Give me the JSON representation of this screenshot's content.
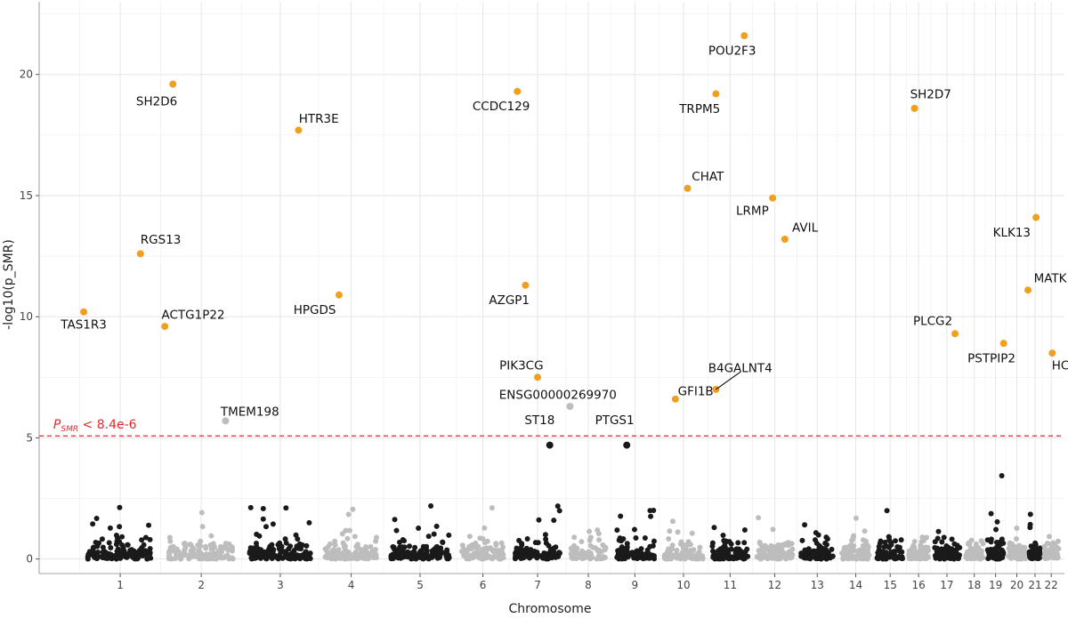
{
  "chart_data": {
    "type": "scatter",
    "title": "",
    "xlabel": "Chromosome",
    "ylabel": "-log10(p_SMR)",
    "ylim": [
      -0.6,
      23.0
    ],
    "yticks": [
      0,
      5,
      10,
      15,
      20
    ],
    "grid": true,
    "chromosomes": [
      {
        "label": "1",
        "start": 0.0,
        "end": 2.0
      },
      {
        "label": "2",
        "start": 2.0,
        "end": 4.0
      },
      {
        "label": "3",
        "start": 4.0,
        "end": 5.9
      },
      {
        "label": "4",
        "start": 5.9,
        "end": 7.5
      },
      {
        "label": "5",
        "start": 7.5,
        "end": 9.3
      },
      {
        "label": "6",
        "start": 9.3,
        "end": 10.6
      },
      {
        "label": "7",
        "start": 10.6,
        "end": 12.0
      },
      {
        "label": "8",
        "start": 12.0,
        "end": 13.1
      },
      {
        "label": "9",
        "start": 13.1,
        "end": 14.3
      },
      {
        "label": "10",
        "start": 14.3,
        "end": 15.5
      },
      {
        "label": "11",
        "start": 15.5,
        "end": 16.6
      },
      {
        "label": "12",
        "start": 16.6,
        "end": 17.7
      },
      {
        "label": "13",
        "start": 17.7,
        "end": 18.7
      },
      {
        "label": "14",
        "start": 18.7,
        "end": 19.6
      },
      {
        "label": "15",
        "start": 19.6,
        "end": 20.4
      },
      {
        "label": "16",
        "start": 20.4,
        "end": 21.0
      },
      {
        "label": "17",
        "start": 21.0,
        "end": 21.8
      },
      {
        "label": "18",
        "start": 21.8,
        "end": 22.35
      },
      {
        "label": "19",
        "start": 22.35,
        "end": 22.85
      },
      {
        "label": "20",
        "start": 22.85,
        "end": 23.4
      },
      {
        "label": "21",
        "start": 23.4,
        "end": 23.75
      },
      {
        "label": "22",
        "start": 23.75,
        "end": 24.2
      }
    ],
    "xrange": [
      -1.0,
      24.3
    ],
    "threshold": {
      "value": 5.08,
      "label_main": "P",
      "label_sub": "SMR",
      "label_rest": " < 8.4e-6"
    },
    "colors": {
      "odd": "#1a1a1a",
      "even": "#bdbdbd",
      "significant": "#f0a01e",
      "threshold": "#e0282c"
    },
    "background_seed": 7,
    "significant": [
      {
        "gene": "TAS1R3",
        "x": 0.1,
        "y": 10.2,
        "lx": 0.1,
        "ly": 9.7
      },
      {
        "gene": "RGS13",
        "x": 1.5,
        "y": 12.6,
        "lx": 2.0,
        "ly": 13.2
      },
      {
        "gene": "ACTG1P22",
        "x": 2.1,
        "y": 9.6,
        "lx": 2.8,
        "ly": 10.1
      },
      {
        "gene": "SH2D6",
        "x": 2.3,
        "y": 19.6,
        "lx": 1.9,
        "ly": 18.9
      },
      {
        "gene": "TMEM198",
        "x": 3.6,
        "y": 5.7,
        "lx": 4.2,
        "ly": 6.1
      },
      {
        "gene": "HTR3E",
        "x": 5.4,
        "y": 17.7,
        "lx": 5.9,
        "ly": 18.2
      },
      {
        "gene": "HPGDS",
        "x": 6.4,
        "y": 10.9,
        "lx": 5.8,
        "ly": 10.3
      },
      {
        "gene": "CCDC129",
        "x": 10.8,
        "y": 19.3,
        "lx": 10.4,
        "ly": 18.7
      },
      {
        "gene": "AZGP1",
        "x": 11.0,
        "y": 11.3,
        "lx": 10.6,
        "ly": 10.7
      },
      {
        "gene": "PIK3CG",
        "x": 11.3,
        "y": 7.5,
        "lx": 10.9,
        "ly": 8.0
      },
      {
        "gene": "ENSG00000269970",
        "x": 12.1,
        "y": 6.3,
        "lx": 11.8,
        "ly": 6.8
      },
      {
        "gene": "ST18",
        "x": 11.6,
        "y": 4.7,
        "lx": 11.35,
        "ly": 5.75
      },
      {
        "gene": "PTGS1",
        "x": 13.5,
        "y": 4.7,
        "lx": 13.2,
        "ly": 5.75
      },
      {
        "gene": "GFI1B",
        "x": 14.7,
        "y": 6.6,
        "lx": 15.2,
        "ly": 6.95
      },
      {
        "gene": "B4GALNT4",
        "x": 15.7,
        "y": 7.0,
        "lx": 16.3,
        "ly": 7.9
      },
      {
        "gene": "CHAT",
        "x": 15.0,
        "y": 15.3,
        "lx": 15.5,
        "ly": 15.8
      },
      {
        "gene": "TRPM5",
        "x": 15.7,
        "y": 19.2,
        "lx": 15.3,
        "ly": 18.6
      },
      {
        "gene": "POU2F3",
        "x": 16.4,
        "y": 21.6,
        "lx": 16.1,
        "ly": 21.0
      },
      {
        "gene": "LRMP",
        "x": 17.1,
        "y": 14.9,
        "lx": 16.6,
        "ly": 14.4
      },
      {
        "gene": "AVIL",
        "x": 17.4,
        "y": 13.2,
        "lx": 17.9,
        "ly": 13.7
      },
      {
        "gene": "SH2D7",
        "x": 20.6,
        "y": 18.6,
        "lx": 21.0,
        "ly": 19.2
      },
      {
        "gene": "PLCG2",
        "x": 21.6,
        "y": 9.3,
        "lx": 21.05,
        "ly": 9.85
      },
      {
        "gene": "KLK13",
        "x": 23.6,
        "y": 14.1,
        "lx": 23.0,
        "ly": 13.5
      },
      {
        "gene": "MATK",
        "x": 23.4,
        "y": 11.1,
        "lx": 23.95,
        "ly": 11.6
      },
      {
        "gene": "PSTPIP2",
        "x": 22.8,
        "y": 8.9,
        "lx": 22.5,
        "ly": 8.3
      },
      {
        "gene": "HCK",
        "x": 24.0,
        "y": 8.5,
        "lx": 24.3,
        "ly": 8.0
      }
    ]
  }
}
